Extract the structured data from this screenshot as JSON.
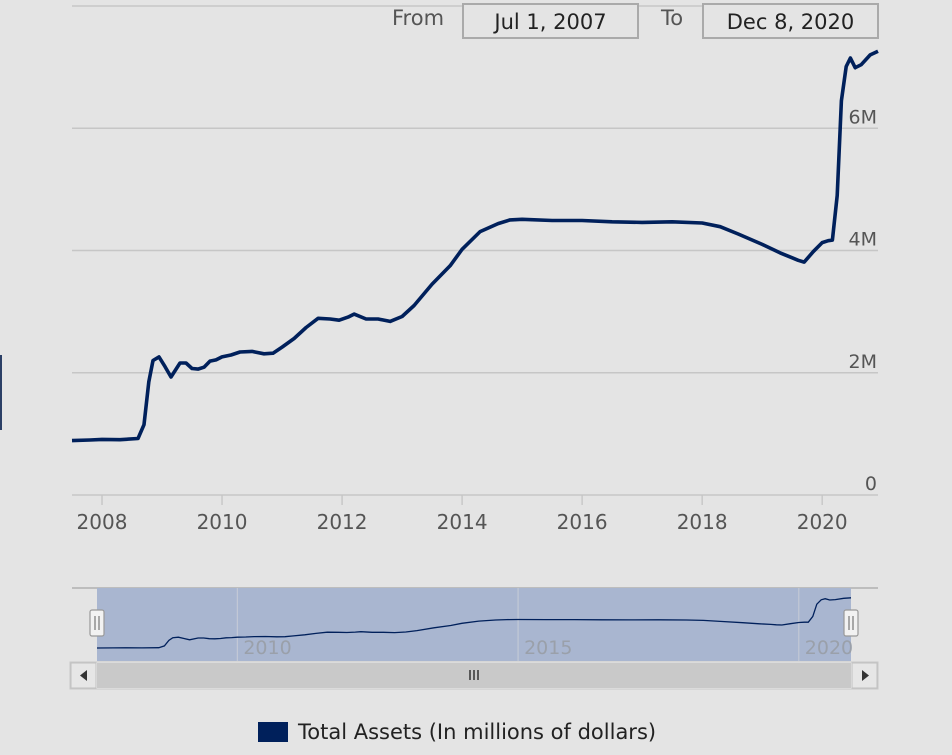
{
  "range_selector": {
    "from_label": "From",
    "from_value": "Jul 1, 2007",
    "to_label": "To",
    "to_value": "Dec 8, 2020"
  },
  "colors": {
    "series": "#00205b",
    "navigator_band": "#a9b6d0",
    "background": "#e4e4e4"
  },
  "navigator": {
    "tick_labels": [
      "2010",
      "2015",
      "2020"
    ],
    "scroll_left_icon": "arrow-left-icon",
    "scroll_right_icon": "arrow-right-icon",
    "grip_icon": "grip-icon"
  },
  "legend": {
    "label": "Total Assets (In millions of dollars)"
  },
  "chart_data": {
    "type": "line",
    "title": "",
    "xlabel": "",
    "ylabel": "",
    "x_ticks": [
      "2008",
      "2010",
      "2012",
      "2014",
      "2016",
      "2018",
      "2020"
    ],
    "y_ticks": [
      "0",
      "2M",
      "4M",
      "6M"
    ],
    "xlim": [
      2007.5,
      2020.93
    ],
    "ylim": [
      0,
      8000000
    ],
    "grid": true,
    "legend_position": "bottom",
    "series": [
      {
        "name": "Total Assets (In millions of dollars)",
        "x": [
          2007.5,
          2007.8,
          2008.0,
          2008.3,
          2008.6,
          2008.7,
          2008.78,
          2008.85,
          2008.95,
          2009.05,
          2009.15,
          2009.3,
          2009.4,
          2009.5,
          2009.6,
          2009.7,
          2009.8,
          2009.9,
          2010.0,
          2010.15,
          2010.3,
          2010.5,
          2010.7,
          2010.85,
          2011.0,
          2011.2,
          2011.4,
          2011.6,
          2011.8,
          2011.95,
          2012.1,
          2012.2,
          2012.4,
          2012.6,
          2012.8,
          2013.0,
          2013.2,
          2013.5,
          2013.8,
          2014.0,
          2014.3,
          2014.6,
          2014.8,
          2015.0,
          2015.5,
          2016.0,
          2016.5,
          2017.0,
          2017.5,
          2018.0,
          2018.3,
          2018.6,
          2019.0,
          2019.3,
          2019.5,
          2019.6,
          2019.7,
          2019.85,
          2020.0,
          2020.1,
          2020.17,
          2020.25,
          2020.32,
          2020.4,
          2020.47,
          2020.55,
          2020.65,
          2020.8,
          2020.93
        ],
        "values": [
          890000,
          900000,
          910000,
          905000,
          925000,
          1150000,
          1850000,
          2200000,
          2260000,
          2100000,
          1930000,
          2160000,
          2160000,
          2070000,
          2060000,
          2090000,
          2190000,
          2210000,
          2260000,
          2290000,
          2340000,
          2350000,
          2310000,
          2320000,
          2420000,
          2560000,
          2740000,
          2890000,
          2880000,
          2860000,
          2910000,
          2960000,
          2880000,
          2880000,
          2840000,
          2920000,
          3100000,
          3450000,
          3750000,
          4020000,
          4310000,
          4440000,
          4500000,
          4510000,
          4490000,
          4490000,
          4470000,
          4460000,
          4470000,
          4450000,
          4390000,
          4270000,
          4100000,
          3960000,
          3880000,
          3840000,
          3810000,
          3980000,
          4130000,
          4160000,
          4170000,
          4900000,
          6450000,
          7010000,
          7150000,
          6990000,
          7040000,
          7200000,
          7260000
        ]
      }
    ]
  }
}
